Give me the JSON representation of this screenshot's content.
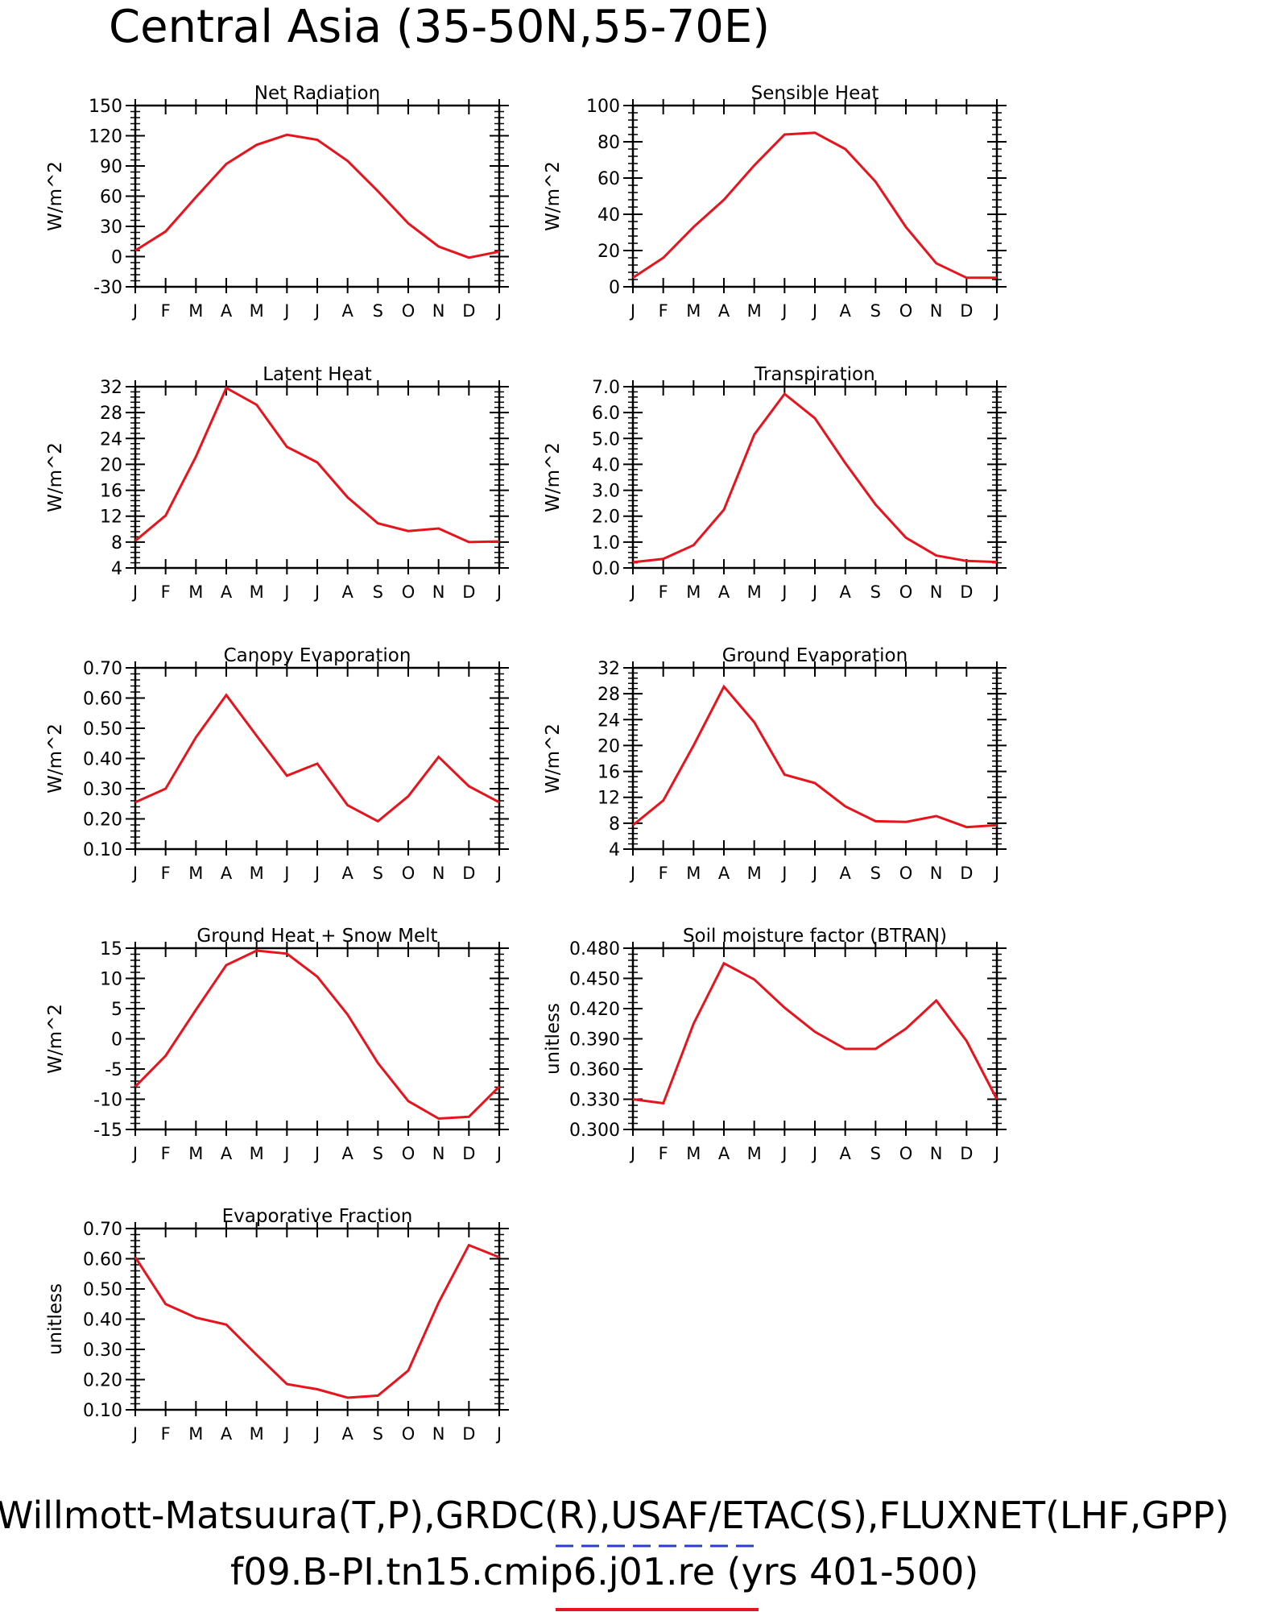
{
  "page_title": "Central Asia (35-50N,55-70E)",
  "footer": {
    "obs_line": "Willmott-Matsuura(T,P),GRDC(R),USAF/ETAC(S),FLUXNET(LHF,GPP)",
    "case_line": "f09.B-PI.tn15.cmip6.j01.re (yrs 401-500)",
    "obs_line_color": "#2a3cd6",
    "case_line_color": "#e8131c"
  },
  "months": [
    "J",
    "F",
    "M",
    "A",
    "M",
    "J",
    "J",
    "A",
    "S",
    "O",
    "N",
    "D",
    "J"
  ],
  "line_color": "#e8131c",
  "chart_data": [
    {
      "type": "line",
      "title": "Net Radiation",
      "ylabel": "W/m^2",
      "ylim": [
        -30,
        150
      ],
      "yticks": [
        -30,
        0,
        30,
        60,
        90,
        120,
        150
      ],
      "ytick_labels": [
        "-30",
        "0",
        "30",
        "60",
        "90",
        "120",
        "150"
      ],
      "values": [
        6,
        25,
        59,
        92,
        111,
        121,
        116,
        95,
        65,
        33,
        10,
        -1,
        5
      ]
    },
    {
      "type": "line",
      "title": "Sensible Heat",
      "ylabel": "W/m^2",
      "ylim": [
        0,
        100
      ],
      "yticks": [
        0,
        20,
        40,
        60,
        80,
        100
      ],
      "ytick_labels": [
        "0",
        "20",
        "40",
        "60",
        "80",
        "100"
      ],
      "values": [
        5,
        16,
        33,
        48,
        67,
        84,
        85,
        76,
        58,
        33,
        13,
        5,
        5
      ]
    },
    {
      "type": "line",
      "title": "Latent Heat",
      "ylabel": "W/m^2",
      "ylim": [
        4,
        32
      ],
      "yticks": [
        4,
        8,
        12,
        16,
        20,
        24,
        28,
        32
      ],
      "ytick_labels": [
        "4",
        "8",
        "12",
        "16",
        "20",
        "24",
        "28",
        "32"
      ],
      "values": [
        8.2,
        12.1,
        21.2,
        31.8,
        29.2,
        22.7,
        20.3,
        14.9,
        10.9,
        9.7,
        10.1,
        8.0,
        8.1
      ]
    },
    {
      "type": "line",
      "title": "Transpiration",
      "ylabel": "W/m^2",
      "ylim": [
        0,
        7
      ],
      "yticks": [
        0,
        1,
        2,
        3,
        4,
        5,
        6,
        7
      ],
      "ytick_labels": [
        "0.0",
        "1.0",
        "2.0",
        "3.0",
        "4.0",
        "5.0",
        "6.0",
        "7.0"
      ],
      "values": [
        0.22,
        0.35,
        0.88,
        2.25,
        5.15,
        6.72,
        5.78,
        4.05,
        2.45,
        1.17,
        0.48,
        0.27,
        0.23
      ]
    },
    {
      "type": "line",
      "title": "Canopy Evaporation",
      "ylabel": "W/m^2",
      "ylim": [
        0.1,
        0.7
      ],
      "yticks": [
        0.1,
        0.2,
        0.3,
        0.4,
        0.5,
        0.6,
        0.7
      ],
      "ytick_labels": [
        "0.10",
        "0.20",
        "0.30",
        "0.40",
        "0.50",
        "0.60",
        "0.70"
      ],
      "values": [
        0.255,
        0.3,
        0.47,
        0.61,
        0.475,
        0.343,
        0.383,
        0.245,
        0.192,
        0.275,
        0.405,
        0.308,
        0.255
      ]
    },
    {
      "type": "line",
      "title": "Ground Evaporation",
      "ylabel": "W/m^2",
      "ylim": [
        4,
        32
      ],
      "yticks": [
        4,
        8,
        12,
        16,
        20,
        24,
        28,
        32
      ],
      "ytick_labels": [
        "4",
        "8",
        "12",
        "16",
        "20",
        "24",
        "28",
        "32"
      ],
      "values": [
        7.7,
        11.5,
        20.0,
        29.1,
        23.6,
        15.5,
        14.2,
        10.6,
        8.3,
        8.2,
        9.1,
        7.4,
        7.7
      ]
    },
    {
      "type": "line",
      "title": "Ground Heat + Snow Melt",
      "ylabel": "W/m^2",
      "ylim": [
        -15,
        15
      ],
      "yticks": [
        -15,
        -10,
        -5,
        0,
        5,
        10,
        15
      ],
      "ytick_labels": [
        "-15",
        "-10",
        "-5",
        "0",
        "5",
        "10",
        "15"
      ],
      "values": [
        -7.9,
        -2.8,
        4.8,
        12.2,
        14.6,
        14.1,
        10.3,
        4.0,
        -4.0,
        -10.3,
        -13.2,
        -12.9,
        -7.9
      ]
    },
    {
      "type": "line",
      "title": "Soil moisture factor (BTRAN)",
      "ylabel": "unitless",
      "ylim": [
        0.3,
        0.48
      ],
      "yticks": [
        0.3,
        0.33,
        0.36,
        0.39,
        0.42,
        0.45,
        0.48
      ],
      "ytick_labels": [
        "0.300",
        "0.330",
        "0.360",
        "0.390",
        "0.420",
        "0.450",
        "0.480"
      ],
      "values": [
        0.33,
        0.326,
        0.405,
        0.465,
        0.449,
        0.421,
        0.397,
        0.38,
        0.38,
        0.4,
        0.428,
        0.388,
        0.33
      ]
    },
    {
      "type": "line",
      "title": "Evaporative Fraction",
      "ylabel": "unitless",
      "ylim": [
        0.1,
        0.7
      ],
      "yticks": [
        0.1,
        0.2,
        0.3,
        0.4,
        0.5,
        0.6,
        0.7
      ],
      "ytick_labels": [
        "0.10",
        "0.20",
        "0.30",
        "0.40",
        "0.50",
        "0.60",
        "0.70"
      ],
      "values": [
        0.605,
        0.45,
        0.405,
        0.382,
        0.282,
        0.185,
        0.168,
        0.14,
        0.147,
        0.23,
        0.455,
        0.645,
        0.605
      ]
    }
  ]
}
